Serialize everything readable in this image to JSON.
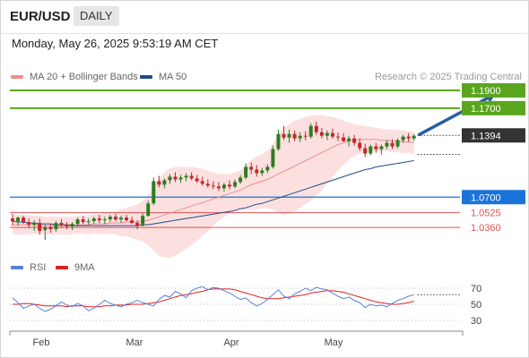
{
  "header": {
    "symbol": "EUR/USD",
    "timeframe": "DAILY",
    "datetime": "Monday, May 26, 2025 9:53:19 AM CET"
  },
  "legend": {
    "ma20_label": "MA 20 + Bollinger Bands",
    "ma50_label": "MA 50",
    "copyright": "Research © 2025 Trading Central",
    "rsi_label": "RSI",
    "rsi_ma_label": "9MA"
  },
  "colors": {
    "bull": "#2e7d1e",
    "bear": "#c0272d",
    "ma20": "#f28c8c",
    "ma50": "#1e4c8c",
    "band_fill": "#fbd6d6",
    "target": "#5aa51e",
    "pivot": "#1a73d9",
    "support": "#e05050",
    "last_price_tag": "#333333",
    "arrow": "#2a5fa0",
    "rsi": "#5b7fd6",
    "rsi_ma": "#e02020"
  },
  "chart_data": [
    {
      "type": "candlestick",
      "symbol": "EUR/USD",
      "timeframe": "daily",
      "ylim": [
        1.02,
        1.195
      ],
      "x_tick_labels": [
        "Feb",
        "Mar",
        "Apr",
        "May"
      ],
      "levels": [
        {
          "kind": "resistance",
          "label": "1.1900",
          "value": 1.19
        },
        {
          "kind": "resistance",
          "label": "1.1700",
          "value": 1.17
        },
        {
          "kind": "last_price",
          "label": "1.1394",
          "value": 1.1394
        },
        {
          "kind": "pivot",
          "label": "1.0700",
          "value": 1.07
        },
        {
          "kind": "support",
          "label": "1.0525",
          "value": 1.0525
        },
        {
          "kind": "support",
          "label": "1.0360",
          "value": 1.036
        }
      ],
      "ohlc": [
        [
          1.046,
          1.051,
          1.038,
          1.043
        ],
        [
          1.043,
          1.048,
          1.038,
          1.047
        ],
        [
          1.047,
          1.049,
          1.04,
          1.042
        ],
        [
          1.042,
          1.046,
          1.035,
          1.039
        ],
        [
          1.039,
          1.044,
          1.032,
          1.041
        ],
        [
          1.041,
          1.046,
          1.028,
          1.032
        ],
        [
          1.033,
          1.039,
          1.022,
          1.036
        ],
        [
          1.036,
          1.04,
          1.03,
          1.034
        ],
        [
          1.034,
          1.043,
          1.031,
          1.041
        ],
        [
          1.041,
          1.045,
          1.036,
          1.039
        ],
        [
          1.039,
          1.042,
          1.034,
          1.037
        ],
        [
          1.037,
          1.042,
          1.033,
          1.04
        ],
        [
          1.04,
          1.047,
          1.037,
          1.045
        ],
        [
          1.045,
          1.049,
          1.04,
          1.042
        ],
        [
          1.042,
          1.046,
          1.039,
          1.043
        ],
        [
          1.043,
          1.048,
          1.04,
          1.046
        ],
        [
          1.046,
          1.05,
          1.041,
          1.044
        ],
        [
          1.044,
          1.048,
          1.04,
          1.045
        ],
        [
          1.045,
          1.05,
          1.042,
          1.048
        ],
        [
          1.048,
          1.051,
          1.043,
          1.045
        ],
        [
          1.045,
          1.049,
          1.041,
          1.047
        ],
        [
          1.047,
          1.05,
          1.043,
          1.044
        ],
        [
          1.044,
          1.048,
          1.04,
          1.041
        ],
        [
          1.041,
          1.044,
          1.034,
          1.038
        ],
        [
          1.038,
          1.052,
          1.037,
          1.049
        ],
        [
          1.049,
          1.066,
          1.048,
          1.063
        ],
        [
          1.063,
          1.092,
          1.061,
          1.088
        ],
        [
          1.088,
          1.094,
          1.081,
          1.084
        ],
        [
          1.084,
          1.091,
          1.08,
          1.089
        ],
        [
          1.089,
          1.096,
          1.085,
          1.093
        ],
        [
          1.093,
          1.098,
          1.087,
          1.09
        ],
        [
          1.09,
          1.095,
          1.086,
          1.092
        ],
        [
          1.092,
          1.097,
          1.088,
          1.094
        ],
        [
          1.094,
          1.098,
          1.089,
          1.091
        ],
        [
          1.091,
          1.095,
          1.086,
          1.088
        ],
        [
          1.088,
          1.093,
          1.083,
          1.085
        ],
        [
          1.085,
          1.09,
          1.081,
          1.083
        ],
        [
          1.083,
          1.088,
          1.079,
          1.082
        ],
        [
          1.082,
          1.087,
          1.077,
          1.08
        ],
        [
          1.08,
          1.086,
          1.076,
          1.084
        ],
        [
          1.084,
          1.089,
          1.079,
          1.082
        ],
        [
          1.082,
          1.09,
          1.08,
          1.087
        ],
        [
          1.087,
          1.095,
          1.085,
          1.092
        ],
        [
          1.092,
          1.108,
          1.09,
          1.104
        ],
        [
          1.104,
          1.109,
          1.096,
          1.101
        ],
        [
          1.101,
          1.106,
          1.093,
          1.097
        ],
        [
          1.097,
          1.103,
          1.094,
          1.1
        ],
        [
          1.1,
          1.107,
          1.097,
          1.104
        ],
        [
          1.104,
          1.128,
          1.102,
          1.124
        ],
        [
          1.124,
          1.146,
          1.122,
          1.141
        ],
        [
          1.141,
          1.15,
          1.134,
          1.137
        ],
        [
          1.137,
          1.146,
          1.131,
          1.141
        ],
        [
          1.141,
          1.145,
          1.133,
          1.136
        ],
        [
          1.136,
          1.143,
          1.132,
          1.139
        ],
        [
          1.139,
          1.144,
          1.134,
          1.138
        ],
        [
          1.138,
          1.153,
          1.136,
          1.15
        ],
        [
          1.15,
          1.155,
          1.14,
          1.143
        ],
        [
          1.143,
          1.148,
          1.136,
          1.139
        ],
        [
          1.139,
          1.145,
          1.134,
          1.142
        ],
        [
          1.142,
          1.147,
          1.136,
          1.138
        ],
        [
          1.138,
          1.143,
          1.133,
          1.137
        ],
        [
          1.137,
          1.142,
          1.132,
          1.133
        ],
        [
          1.133,
          1.139,
          1.127,
          1.136
        ],
        [
          1.136,
          1.14,
          1.128,
          1.131
        ],
        [
          1.131,
          1.136,
          1.122,
          1.125
        ],
        [
          1.125,
          1.13,
          1.115,
          1.119
        ],
        [
          1.119,
          1.129,
          1.117,
          1.127
        ],
        [
          1.127,
          1.131,
          1.12,
          1.124
        ],
        [
          1.124,
          1.129,
          1.118,
          1.127
        ],
        [
          1.127,
          1.134,
          1.124,
          1.131
        ],
        [
          1.131,
          1.135,
          1.124,
          1.127
        ],
        [
          1.127,
          1.136,
          1.125,
          1.134
        ],
        [
          1.134,
          1.14,
          1.131,
          1.138
        ],
        [
          1.138,
          1.142,
          1.132,
          1.136
        ],
        [
          1.136,
          1.141,
          1.133,
          1.139
        ]
      ],
      "ma20": [
        1.039,
        1.039,
        1.039,
        1.039,
        1.039,
        1.038,
        1.038,
        1.038,
        1.038,
        1.038,
        1.038,
        1.038,
        1.039,
        1.039,
        1.039,
        1.04,
        1.04,
        1.04,
        1.041,
        1.041,
        1.041,
        1.042,
        1.042,
        1.042,
        1.043,
        1.044,
        1.046,
        1.048,
        1.05,
        1.052,
        1.054,
        1.056,
        1.058,
        1.06,
        1.062,
        1.064,
        1.066,
        1.068,
        1.07,
        1.072,
        1.074,
        1.076,
        1.078,
        1.081,
        1.084,
        1.086,
        1.088,
        1.09,
        1.093,
        1.096,
        1.099,
        1.102,
        1.105,
        1.108,
        1.111,
        1.114,
        1.117,
        1.12,
        1.123,
        1.126,
        1.129,
        1.131,
        1.133,
        1.134,
        1.135,
        1.135,
        1.135,
        1.135,
        1.134,
        1.134,
        1.133,
        1.133,
        1.132,
        1.132,
        1.131
      ],
      "bb_upper": [
        1.05,
        1.05,
        1.05,
        1.05,
        1.049,
        1.049,
        1.048,
        1.048,
        1.048,
        1.048,
        1.048,
        1.048,
        1.049,
        1.049,
        1.05,
        1.051,
        1.051,
        1.052,
        1.053,
        1.054,
        1.056,
        1.058,
        1.06,
        1.062,
        1.066,
        1.072,
        1.082,
        1.092,
        1.098,
        1.102,
        1.104,
        1.104,
        1.104,
        1.104,
        1.103,
        1.102,
        1.1,
        1.098,
        1.096,
        1.096,
        1.096,
        1.098,
        1.1,
        1.106,
        1.112,
        1.116,
        1.118,
        1.122,
        1.13,
        1.14,
        1.148,
        1.152,
        1.156,
        1.158,
        1.16,
        1.162,
        1.162,
        1.162,
        1.161,
        1.16,
        1.158,
        1.156,
        1.154,
        1.152,
        1.151,
        1.15,
        1.149,
        1.148,
        1.147,
        1.146,
        1.146,
        1.145,
        1.145,
        1.144,
        1.144
      ],
      "bb_lower": [
        1.028,
        1.028,
        1.028,
        1.028,
        1.029,
        1.028,
        1.028,
        1.028,
        1.028,
        1.028,
        1.028,
        1.028,
        1.029,
        1.029,
        1.028,
        1.029,
        1.029,
        1.028,
        1.029,
        1.028,
        1.026,
        1.026,
        1.024,
        1.022,
        1.02,
        1.016,
        1.01,
        1.004,
        1.002,
        1.002,
        1.004,
        1.008,
        1.012,
        1.016,
        1.021,
        1.026,
        1.032,
        1.038,
        1.044,
        1.048,
        1.052,
        1.054,
        1.056,
        1.056,
        1.056,
        1.056,
        1.058,
        1.058,
        1.056,
        1.052,
        1.05,
        1.052,
        1.054,
        1.058,
        1.062,
        1.066,
        1.072,
        1.078,
        1.085,
        1.092,
        1.1,
        1.106,
        1.112,
        1.116,
        1.119,
        1.12,
        1.121,
        1.122,
        1.121,
        1.122,
        1.12,
        1.121,
        1.119,
        1.12,
        1.118
      ],
      "ma50": [
        1.043,
        1.042,
        1.042,
        1.041,
        1.041,
        1.04,
        1.04,
        1.04,
        1.039,
        1.039,
        1.039,
        1.038,
        1.038,
        1.038,
        1.038,
        1.038,
        1.038,
        1.038,
        1.038,
        1.038,
        1.038,
        1.038,
        1.038,
        1.038,
        1.039,
        1.039,
        1.04,
        1.041,
        1.042,
        1.043,
        1.044,
        1.045,
        1.046,
        1.047,
        1.048,
        1.049,
        1.05,
        1.051,
        1.052,
        1.053,
        1.054,
        1.055,
        1.057,
        1.058,
        1.06,
        1.062,
        1.063,
        1.065,
        1.067,
        1.069,
        1.071,
        1.073,
        1.075,
        1.077,
        1.079,
        1.081,
        1.083,
        1.085,
        1.087,
        1.089,
        1.091,
        1.093,
        1.095,
        1.097,
        1.099,
        1.101,
        1.102,
        1.104,
        1.105,
        1.106,
        1.107,
        1.108,
        1.109,
        1.11,
        1.111
      ],
      "arrow": {
        "from": {
          "bar": 74,
          "price": 1.1394
        },
        "to": {
          "bar": 88,
          "price": 1.186
        }
      }
    },
    {
      "type": "line",
      "title": "RSI",
      "ylim": [
        20,
        80
      ],
      "y_tick_labels": [
        "70",
        "50",
        "30"
      ],
      "series": [
        {
          "name": "RSI",
          "values": [
            58,
            52,
            45,
            48,
            50,
            45,
            41,
            44,
            48,
            53,
            49,
            47,
            51,
            48,
            42,
            45,
            50,
            55,
            51,
            49,
            47,
            50,
            52,
            55,
            52,
            50,
            48,
            56,
            61,
            59,
            66,
            63,
            58,
            67,
            70,
            72,
            68,
            71,
            70,
            67,
            64,
            60,
            56,
            58,
            52,
            48,
            51,
            56,
            62,
            68,
            60,
            57,
            63,
            66,
            70,
            67,
            71,
            69,
            68,
            64,
            60,
            57,
            59,
            55,
            52,
            46,
            50,
            48,
            49,
            47,
            51,
            55,
            57,
            60,
            62
          ]
        },
        {
          "name": "9MA",
          "values": [
            50,
            50,
            51,
            51,
            50,
            49,
            48,
            48,
            48,
            48,
            47,
            48,
            48,
            48,
            47,
            47,
            47,
            48,
            48,
            49,
            49,
            49,
            50,
            50,
            50,
            51,
            52,
            53,
            55,
            57,
            59,
            61,
            62,
            63,
            65,
            66,
            68,
            69,
            69,
            69,
            69,
            68,
            66,
            64,
            62,
            60,
            58,
            57,
            57,
            57,
            58,
            59,
            60,
            61,
            62,
            64,
            65,
            66,
            67,
            67,
            66,
            65,
            63,
            61,
            59,
            57,
            55,
            53,
            52,
            51,
            50,
            50,
            51,
            52,
            54
          ]
        }
      ]
    }
  ]
}
